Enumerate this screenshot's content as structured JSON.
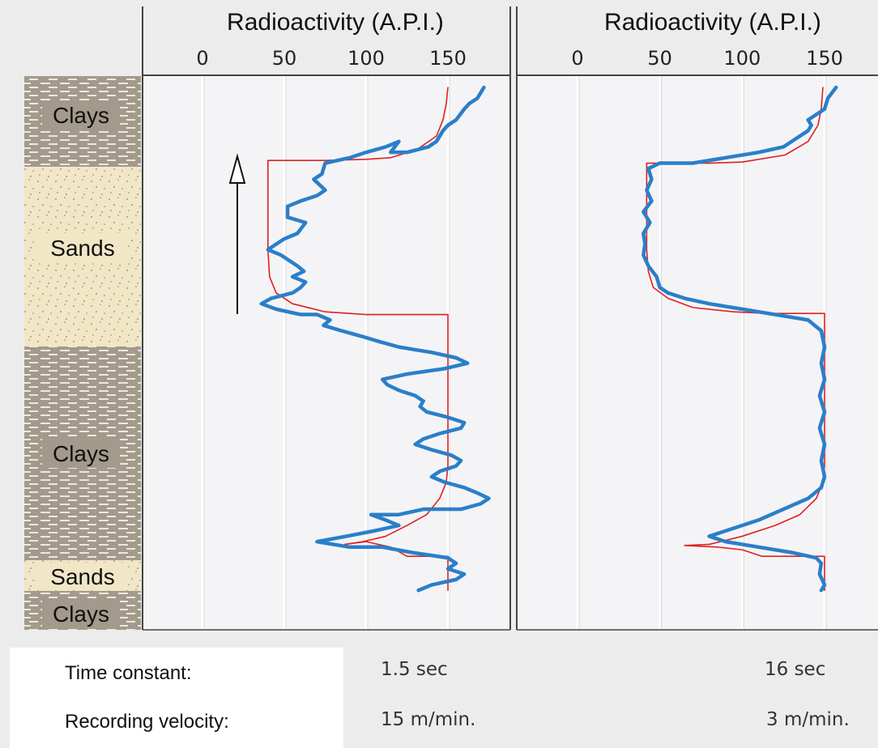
{
  "chart_data": [
    {
      "type": "line",
      "title": "Radioactivity (A.P.I.)",
      "xlabel": "Radioactivity (A.P.I.)",
      "xticks": [
        "0",
        "50",
        "100",
        "150"
      ],
      "xlim": [
        -35,
        175
      ],
      "depth_range": [
        0,
        100
      ],
      "grid": true,
      "series": [
        {
          "role": "measured-log",
          "color": "#2a7fc9",
          "points": [
            [
              172,
              0
            ],
            [
              168,
              2
            ],
            [
              163,
              3
            ],
            [
              160,
              4
            ],
            [
              155,
              6
            ],
            [
              150,
              7
            ],
            [
              147,
              8
            ],
            [
              143,
              10
            ],
            [
              138,
              11
            ],
            [
              125,
              12
            ],
            [
              115,
              12
            ],
            [
              120,
              10
            ],
            [
              112,
              11
            ],
            [
              100,
              12
            ],
            [
              90,
              13
            ],
            [
              75,
              14
            ],
            [
              73,
              16
            ],
            [
              68,
              17
            ],
            [
              75,
              19
            ],
            [
              70,
              20
            ],
            [
              60,
              21
            ],
            [
              52,
              22
            ],
            [
              52,
              24
            ],
            [
              63,
              25
            ],
            [
              58,
              27
            ],
            [
              50,
              28
            ],
            [
              40,
              30
            ],
            [
              48,
              31
            ],
            [
              58,
              33
            ],
            [
              62,
              34
            ],
            [
              55,
              35
            ],
            [
              63,
              36
            ],
            [
              60,
              37
            ],
            [
              55,
              38
            ],
            [
              42,
              39
            ],
            [
              36,
              40
            ],
            [
              45,
              41
            ],
            [
              60,
              42
            ],
            [
              70,
              42
            ],
            [
              78,
              43
            ],
            [
              74,
              44
            ],
            [
              85,
              45
            ],
            [
              97,
              46
            ],
            [
              108,
              47
            ],
            [
              120,
              48
            ],
            [
              140,
              49
            ],
            [
              155,
              50
            ],
            [
              162,
              51
            ],
            [
              148,
              52
            ],
            [
              125,
              53
            ],
            [
              110,
              54
            ],
            [
              113,
              55
            ],
            [
              120,
              56
            ],
            [
              130,
              57
            ],
            [
              135,
              58
            ],
            [
              133,
              59
            ],
            [
              137,
              60
            ],
            [
              150,
              61
            ],
            [
              160,
              62
            ],
            [
              158,
              63
            ],
            [
              145,
              64
            ],
            [
              135,
              65
            ],
            [
              130,
              66
            ],
            [
              140,
              67
            ],
            [
              152,
              68
            ],
            [
              158,
              69
            ],
            [
              155,
              70
            ],
            [
              145,
              71
            ],
            [
              140,
              72
            ],
            [
              148,
              73
            ],
            [
              160,
              74
            ],
            [
              168,
              75
            ],
            [
              175,
              76
            ],
            [
              170,
              77
            ],
            [
              158,
              78
            ],
            [
              135,
              78
            ],
            [
              120,
              79
            ],
            [
              103,
              79
            ],
            [
              112,
              80
            ],
            [
              120,
              81
            ],
            [
              105,
              82
            ],
            [
              88,
              83
            ],
            [
              70,
              84
            ],
            [
              90,
              85
            ],
            [
              110,
              85
            ],
            [
              128,
              86
            ],
            [
              150,
              87
            ],
            [
              155,
              88
            ],
            [
              150,
              89
            ],
            [
              160,
              90
            ],
            [
              155,
              91
            ],
            [
              140,
              92
            ],
            [
              132,
              93
            ]
          ]
        },
        {
          "role": "ideal-response",
          "color": "#e02020",
          "points": [
            [
              150,
              0
            ],
            [
              149,
              3
            ],
            [
              147,
              6
            ],
            [
              143,
              9
            ],
            [
              131,
              11.5
            ],
            [
              115,
              13
            ],
            [
              100,
              13.3
            ],
            [
              75,
              13.5
            ],
            [
              40,
              13.5
            ],
            [
              40,
              30
            ],
            [
              41,
              35
            ],
            [
              45,
              38
            ],
            [
              55,
              40
            ],
            [
              75,
              41.5
            ],
            [
              100,
              42
            ],
            [
              115,
              42
            ],
            [
              150,
              42
            ],
            [
              150,
              70
            ],
            [
              149,
              73
            ],
            [
              145,
              76
            ],
            [
              137,
              79
            ],
            [
              125,
              81
            ],
            [
              112,
              83
            ],
            [
              98,
              84
            ],
            [
              87,
              84.5
            ],
            [
              100,
              84
            ],
            [
              115,
              85
            ],
            [
              125,
              86.7
            ],
            [
              150,
              86.7
            ],
            [
              150,
              93
            ]
          ]
        }
      ],
      "footer": {
        "time_constant_label": "Time constant:",
        "time_constant_value": "1.5 sec",
        "velocity_label": "Recording velocity:",
        "velocity_value": "15 m/min."
      }
    },
    {
      "type": "line",
      "title": "Radioactivity (A.P.I.)",
      "xlabel": "Radioactivity (A.P.I.)",
      "xticks": [
        "0",
        "50",
        "100",
        "150"
      ],
      "xlim": [
        -35,
        175
      ],
      "depth_range": [
        0,
        100
      ],
      "grid": true,
      "series": [
        {
          "role": "measured-log",
          "color": "#2a7fc9",
          "points": [
            [
              157,
              0
            ],
            [
              152,
              2
            ],
            [
              150,
              4
            ],
            [
              140,
              6
            ],
            [
              142,
              7
            ],
            [
              140,
              8
            ],
            [
              135,
              9
            ],
            [
              125,
              11
            ],
            [
              110,
              12
            ],
            [
              90,
              13
            ],
            [
              70,
              14
            ],
            [
              50,
              14
            ],
            [
              43,
              15
            ],
            [
              45,
              17
            ],
            [
              42,
              19
            ],
            [
              45,
              21
            ],
            [
              40,
              23
            ],
            [
              44,
              25
            ],
            [
              40,
              27
            ],
            [
              41,
              29
            ],
            [
              40,
              31
            ],
            [
              43,
              33
            ],
            [
              48,
              35
            ],
            [
              50,
              37
            ],
            [
              55,
              38
            ],
            [
              65,
              39
            ],
            [
              80,
              40
            ],
            [
              100,
              41
            ],
            [
              120,
              42
            ],
            [
              140,
              43
            ],
            [
              148,
              45
            ],
            [
              150,
              48
            ],
            [
              148,
              51
            ],
            [
              150,
              54
            ],
            [
              147,
              57
            ],
            [
              150,
              60
            ],
            [
              147,
              63
            ],
            [
              150,
              66
            ],
            [
              148,
              69
            ],
            [
              150,
              72
            ],
            [
              148,
              74
            ],
            [
              140,
              76
            ],
            [
              125,
              78
            ],
            [
              110,
              80
            ],
            [
              90,
              82
            ],
            [
              80,
              83
            ],
            [
              90,
              84
            ],
            [
              110,
              85
            ],
            [
              130,
              86
            ],
            [
              145,
              87
            ],
            [
              148,
              88
            ],
            [
              147,
              90
            ],
            [
              150,
              92
            ],
            [
              148,
              93
            ]
          ]
        },
        {
          "role": "ideal-response",
          "color": "#e02020",
          "points": [
            [
              149,
              0
            ],
            [
              148,
              4
            ],
            [
              146,
              7
            ],
            [
              140,
              10
            ],
            [
              126,
              12.5
            ],
            [
              100,
              13.8
            ],
            [
              80,
              14
            ],
            [
              42,
              14
            ],
            [
              42,
              30
            ],
            [
              43,
              34
            ],
            [
              46,
              37
            ],
            [
              55,
              39
            ],
            [
              70,
              40.7
            ],
            [
              95,
              41.5
            ],
            [
              115,
              41.8
            ],
            [
              150,
              41.8
            ],
            [
              150,
              70
            ],
            [
              149,
              73
            ],
            [
              145,
              76
            ],
            [
              135,
              79
            ],
            [
              120,
              81
            ],
            [
              100,
              83
            ],
            [
              80,
              84.5
            ],
            [
              65,
              84.7
            ],
            [
              85,
              85
            ],
            [
              100,
              85.5
            ],
            [
              112,
              86.7
            ],
            [
              150,
              86.7
            ],
            [
              150,
              93
            ]
          ]
        }
      ],
      "footer": {
        "time_constant_value": "16 sec",
        "velocity_value": "3 m/min."
      }
    }
  ],
  "lithology": [
    {
      "label": "Clays",
      "kind": "clay"
    },
    {
      "label": "Sands",
      "kind": "sand"
    },
    {
      "label": "Clays",
      "kind": "clay"
    },
    {
      "label": "Sands",
      "kind": "sand"
    },
    {
      "label": "Clays",
      "kind": "clay"
    }
  ],
  "colors": {
    "background": "#ececec",
    "plot_background": "#f4f4f6",
    "clay": "#a39a8c",
    "sand": "#f1e6c6",
    "measured": "#2a7fc9",
    "ideal": "#e02020"
  }
}
